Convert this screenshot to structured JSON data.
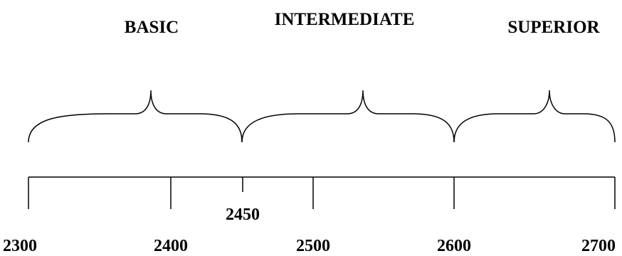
{
  "bands": [
    "BASIC",
    "INTERMEDIATE",
    "SUPERIOR"
  ],
  "scale": {
    "ticks": [
      "2300",
      "2400",
      "2450",
      "2500",
      "2600",
      "2700"
    ]
  }
}
